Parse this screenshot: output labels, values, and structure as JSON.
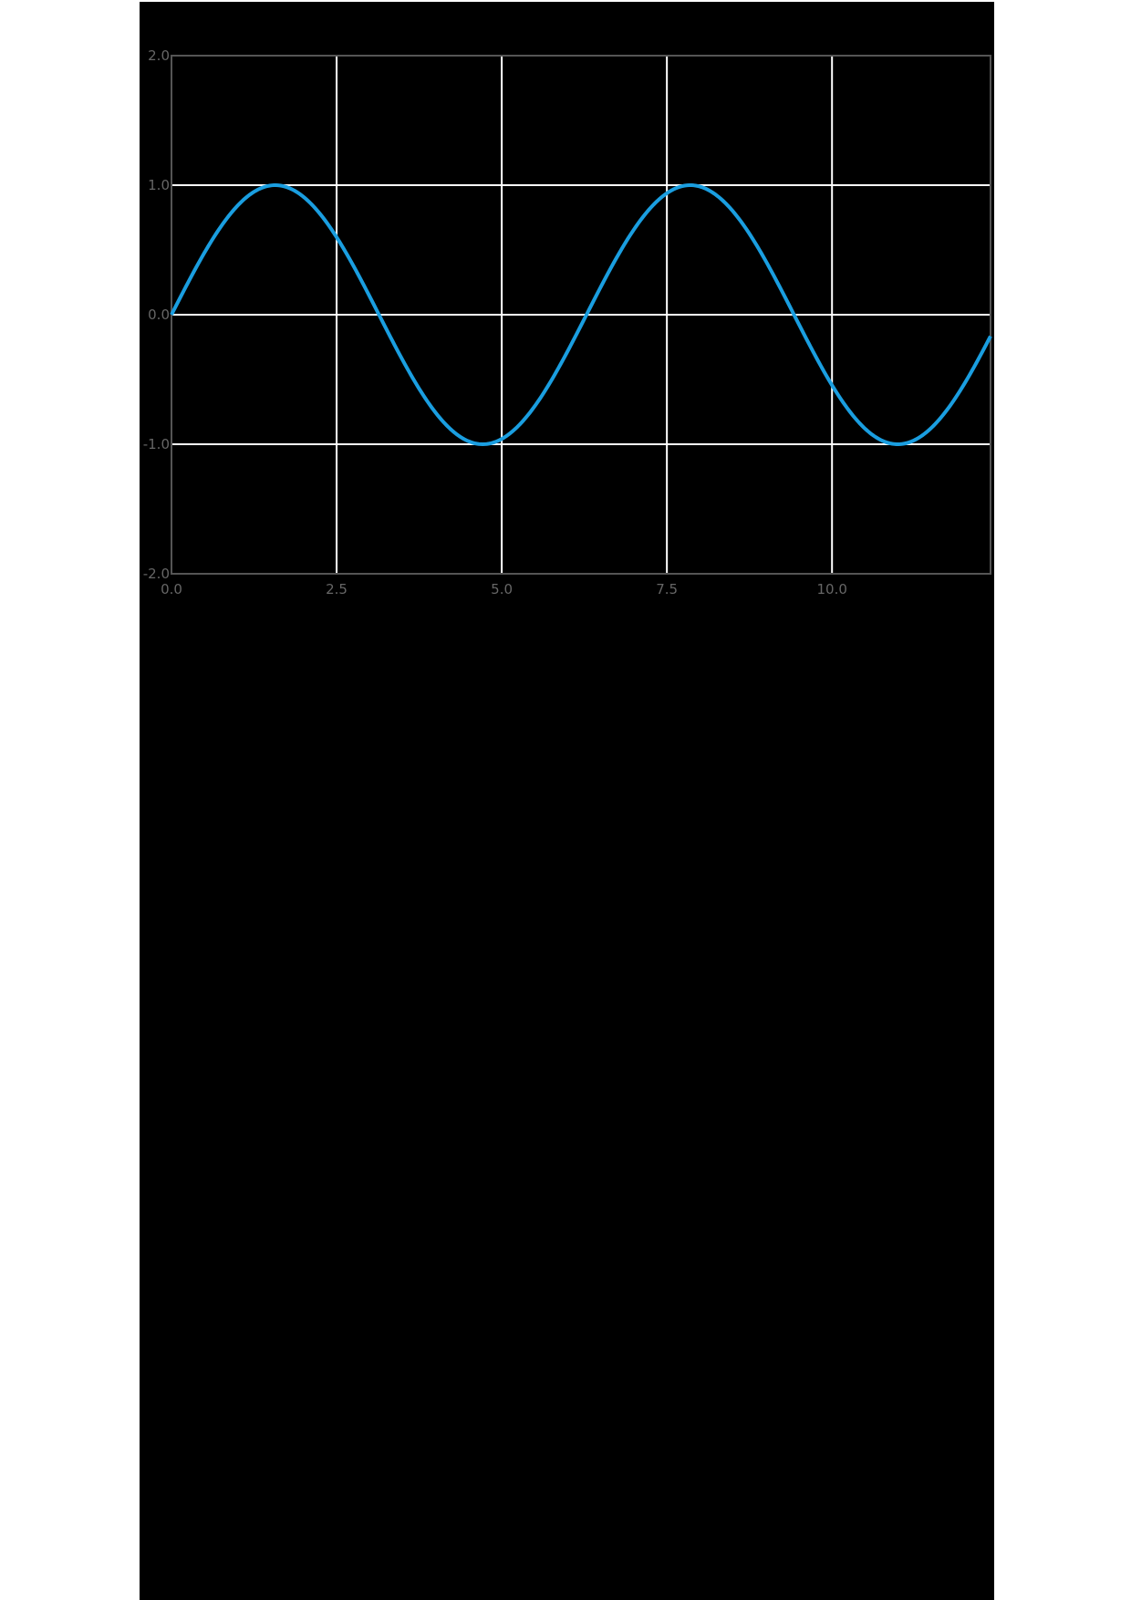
{
  "chart_data": {
    "type": "line",
    "title": "",
    "xlabel": "",
    "ylabel": "",
    "xlim": [
      0,
      12.4
    ],
    "ylim": [
      -2,
      2
    ],
    "grid": true,
    "x_ticks": [
      "0.0",
      "2.5",
      "5.0",
      "7.5",
      "10.0"
    ],
    "y_ticks": [
      "2.0",
      "1.0",
      "0.0",
      "-1.0",
      "-2.0"
    ],
    "series": [
      {
        "function": "sin(x)",
        "color": "#1a9ee0",
        "x": [
          0,
          0.5,
          1.0,
          1.5708,
          2.0,
          2.5,
          3.1416,
          3.5,
          4.0,
          4.7124,
          5.5,
          6.2832,
          7.0,
          7.854,
          8.5,
          9.4248,
          10.0,
          11.0,
          12.0,
          12.4
        ],
        "y": [
          0,
          0.479,
          0.841,
          1.0,
          0.909,
          0.598,
          0,
          -0.351,
          -0.757,
          -1.0,
          -0.706,
          0,
          0.657,
          1.0,
          0.798,
          0,
          -0.544,
          -1.0,
          -0.537,
          -0.166
        ]
      }
    ]
  }
}
